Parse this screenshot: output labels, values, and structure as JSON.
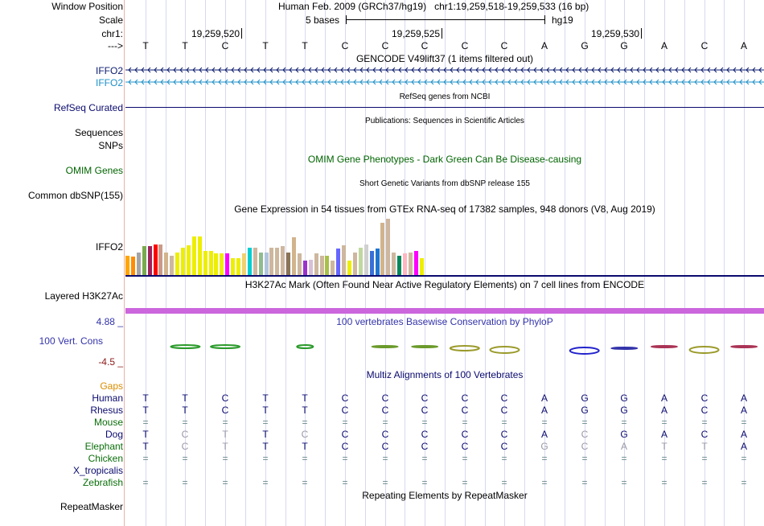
{
  "header": {
    "window_position_label": "Window Position",
    "scale_label": "Scale",
    "chrom_label": "chr1:",
    "strand_label": "--->",
    "assembly": "Human Feb. 2009 (GRCh37/hg19)",
    "position": "chr1:19,259,518-19,259,533 (16 bp)",
    "scale_text": "5 bases",
    "scale_db": "hg19",
    "coords": [
      "19,259,520",
      "19,259,525",
      "19,259,530"
    ],
    "bases": [
      "T",
      "T",
      "C",
      "T",
      "T",
      "C",
      "C",
      "C",
      "C",
      "C",
      "A",
      "G",
      "G",
      "A",
      "C",
      "A"
    ]
  },
  "tracks": {
    "gencode": {
      "title": "GENCODE V49lift37 (1 items filtered out)",
      "items": [
        "IFFO2",
        "IFFO2"
      ]
    },
    "refseq": {
      "title": "RefSeq genes from NCBI",
      "label": "RefSeq Curated"
    },
    "publications": {
      "title": "Publications: Sequences in Scientific Articles",
      "label1": "Sequences",
      "label2": "SNPs"
    },
    "omim": {
      "title": "OMIM Gene Phenotypes - Dark Green Can Be Disease-causing",
      "label": "OMIM Genes"
    },
    "dbsnp": {
      "title": "Short Genetic Variants from dbSNP release 155",
      "label": "Common dbSNP(155)"
    },
    "gtex": {
      "title": "Gene Expression in 54 tissues from GTEx RNA-seq of 17382 samples, 948 donors (V8, Aug 2019)",
      "label": "IFFO2",
      "values": [
        0.32,
        0.31,
        0.38,
        0.48,
        0.48,
        0.52,
        0.52,
        0.38,
        0.32,
        0.38,
        0.46,
        0.5,
        0.65,
        0.65,
        0.4,
        0.4,
        0.36,
        0.36,
        0.36,
        0.28,
        0.28,
        0.36,
        0.46,
        0.46,
        0.38,
        0.38,
        0.46,
        0.46,
        0.48,
        0.38,
        0.63,
        0.36,
        0.24,
        0.26,
        0.36,
        0.32,
        0.32,
        0.24,
        0.44,
        0.5,
        0.24,
        0.38,
        0.46,
        0.52,
        0.4,
        0.44,
        0.88,
        0.94,
        0.38,
        0.32,
        0.36,
        0.38,
        0.4,
        0.28
      ],
      "colors": [
        "#ffa500",
        "#ff8c00",
        "#a4a4a4",
        "#7aaa4e",
        "#a0205b",
        "#ff0000",
        "#cc9988",
        "#d2b48c",
        "#cdb79e",
        "#eeee00",
        "#eeee00",
        "#eeee00",
        "#eeee00",
        "#eeee00",
        "#eeee00",
        "#eeee00",
        "#eeee00",
        "#eeee00",
        "#ff00ff",
        "#eeee00",
        "#eeee00",
        "#f0d070",
        "#00ced1",
        "#cdb79e",
        "#8fbc8f",
        "#b0c4de",
        "#cdb79e",
        "#cdb79e",
        "#cdb79e",
        "#8b7355",
        "#d2b48c",
        "#cdb79e",
        "#9a32cd",
        "#d8bfd8",
        "#cdb79e",
        "#cdb79e",
        "#a8c048",
        "#cdb79e",
        "#6666ff",
        "#cdb79e",
        "#eeee00",
        "#cdb79e",
        "#c0d8a0",
        "#d0d0d0",
        "#3a6fd8",
        "#1e74d0",
        "#d2b48c",
        "#cdb79e",
        "#cdb79e",
        "#00875a",
        "#ffb6c1",
        "#cdb79e",
        "#ff00ff",
        "#eeee00"
      ]
    },
    "h3k27ac": {
      "title": "H3K27Ac Mark (Often Found Near Active Regulatory Elements) on 7 cell lines from ENCODE",
      "label": "Layered H3K27Ac"
    },
    "conservation": {
      "title": "100 vertebrates Basewise Conservation by PhyloP",
      "label": "100 Vert. Cons",
      "max": "4.88 _",
      "min": "-4.5 _"
    },
    "multiz": {
      "title": "Multiz Alignments of 100 Vertebrates",
      "gaps_label": "Gaps",
      "species": [
        {
          "name": "Human",
          "color": "#0a0a6e",
          "bases": [
            "T",
            "T",
            "C",
            "T",
            "T",
            "C",
            "C",
            "C",
            "C",
            "C",
            "A",
            "G",
            "G",
            "A",
            "C",
            "A"
          ]
        },
        {
          "name": "Rhesus",
          "color": "#0a0a6e",
          "bases": [
            "T",
            "T",
            "C",
            "T",
            "T",
            "C",
            "C",
            "C",
            "C",
            "C",
            "A",
            "G",
            "G",
            "A",
            "C",
            "A"
          ]
        },
        {
          "name": "Mouse",
          "color": "#0a6e0a",
          "bases": [
            "=",
            "=",
            "=",
            "=",
            "=",
            "=",
            "=",
            "=",
            "=",
            "=",
            "=",
            "=",
            "=",
            "=",
            "=",
            "="
          ]
        },
        {
          "name": "Dog",
          "color": "#0a0a6e",
          "bases": [
            "T",
            "C",
            "T",
            "T",
            "C",
            "C",
            "C",
            "C",
            "C",
            "C",
            "A",
            "C",
            "G",
            "A",
            "C",
            "A"
          ]
        },
        {
          "name": "Elephant",
          "color": "#0a6e0a",
          "bases": [
            "T",
            "C",
            "T",
            "T",
            "T",
            "C",
            "C",
            "C",
            "C",
            "C",
            "G",
            "C",
            "A",
            "T",
            "T",
            "A"
          ]
        },
        {
          "name": "Chicken",
          "color": "#0a6e0a",
          "bases": [
            "=",
            "=",
            "=",
            "=",
            "=",
            "=",
            "=",
            "=",
            "=",
            "=",
            "=",
            "=",
            "=",
            "=",
            "=",
            "="
          ]
        },
        {
          "name": "X_tropicalis",
          "color": "#0a0a6e",
          "bases": [
            "",
            "",
            "",
            "",
            "",
            "",
            "",
            "",
            "",
            "",
            "",
            "",
            "",
            "",
            "",
            ""
          ]
        },
        {
          "name": "Zebrafish",
          "color": "#0a6e0a",
          "bases": [
            "=",
            "=",
            "=",
            "=",
            "=",
            "=",
            "=",
            "=",
            "=",
            "=",
            "=",
            "=",
            "=",
            "=",
            "=",
            "="
          ]
        }
      ],
      "mismatch": [
        [
          false,
          false,
          false,
          false,
          false,
          false,
          false,
          false,
          false,
          false,
          false,
          false,
          false,
          false,
          false,
          false
        ],
        [
          false,
          false,
          false,
          false,
          false,
          false,
          false,
          false,
          false,
          false,
          false,
          false,
          false,
          false,
          false,
          false
        ],
        [
          false,
          false,
          false,
          false,
          false,
          false,
          false,
          false,
          false,
          false,
          false,
          false,
          false,
          false,
          false,
          false
        ],
        [
          false,
          true,
          true,
          false,
          true,
          false,
          false,
          false,
          false,
          false,
          false,
          true,
          false,
          false,
          false,
          false
        ],
        [
          false,
          true,
          true,
          false,
          false,
          false,
          false,
          false,
          false,
          false,
          true,
          true,
          true,
          true,
          true,
          false
        ],
        [
          false,
          false,
          false,
          false,
          false,
          false,
          false,
          false,
          false,
          false,
          false,
          false,
          false,
          false,
          false,
          false
        ],
        [
          false,
          false,
          false,
          false,
          false,
          false,
          false,
          false,
          false,
          false,
          false,
          false,
          false,
          false,
          false,
          false
        ],
        [
          false,
          false,
          false,
          false,
          false,
          false,
          false,
          false,
          false,
          false,
          false,
          false,
          false,
          false,
          false,
          false
        ]
      ]
    },
    "repeatmasker": {
      "title": "Repeating Elements by RepeatMasker",
      "label": "RepeatMasker"
    }
  },
  "colors": {
    "gencode_dark": "#0a1a6e",
    "gencode_light": "#1e90c8",
    "refseq": "#0a0a6e",
    "omim": "#006400",
    "h3k27ac": "#cc66dd",
    "cons": "#3333aa",
    "gaps": "#d98c00"
  }
}
